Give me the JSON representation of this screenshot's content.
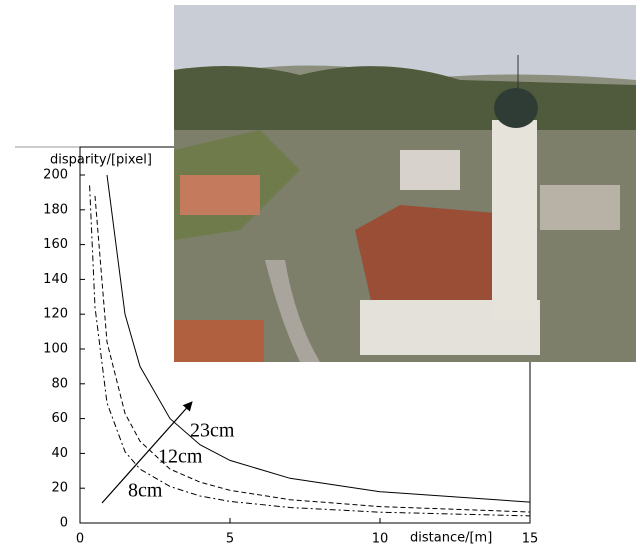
{
  "chart_data": {
    "type": "line",
    "x_label": "distance/[m]",
    "y_label": "disparity/[pixel]",
    "x": [
      0.32,
      0.5,
      0.9,
      1.5,
      2,
      3,
      4,
      5,
      7,
      10,
      15
    ],
    "series": [
      {
        "name": "8cm",
        "color": "#000000",
        "dash": "6 3 2 3",
        "values": [
          194,
          124,
          69,
          41,
          31,
          21,
          15.5,
          12.4,
          8.9,
          6.2,
          4.1
        ]
      },
      {
        "name": "12cm",
        "color": "#000000",
        "dash": "5 3",
        "values": [
          null,
          188,
          104,
          63,
          47,
          31,
          23.5,
          18.8,
          13.4,
          9.4,
          6.3
        ]
      },
      {
        "name": "23cm",
        "color": "#000000",
        "dash": "none",
        "values": [
          null,
          null,
          200,
          120,
          90,
          60,
          45,
          36,
          25.7,
          18,
          12
        ]
      }
    ],
    "xlim": [
      0,
      15
    ],
    "ylim": [
      0,
      200
    ],
    "xticks": [
      0,
      5,
      10,
      15
    ],
    "yticks": [
      0,
      20,
      40,
      60,
      80,
      100,
      120,
      140,
      160,
      180,
      200
    ]
  }
}
